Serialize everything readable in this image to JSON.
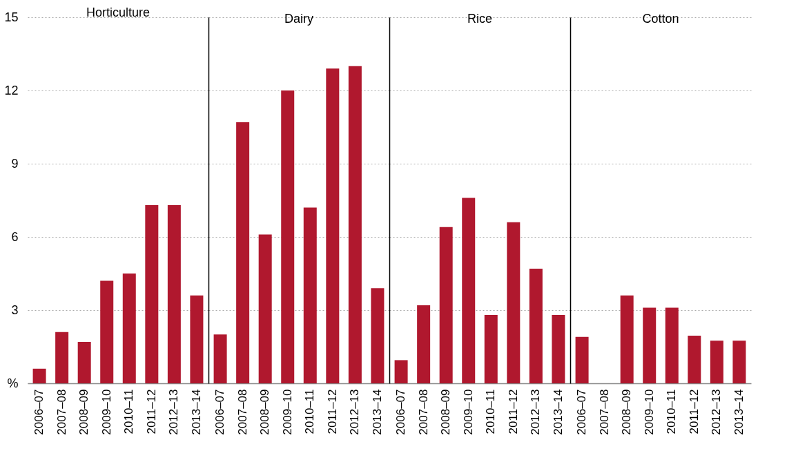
{
  "chart_data": [
    {
      "type": "bar",
      "title": "Horticulture",
      "categories": [
        "2006–07",
        "2007–08",
        "2008–09",
        "2009–10",
        "2010–11",
        "2011–12",
        "2012–13",
        "2013–14"
      ],
      "values": [
        0.6,
        2.1,
        1.7,
        4.2,
        4.5,
        7.3,
        7.3,
        3.6
      ],
      "color": "#b0182e",
      "ylim": [
        0,
        15
      ],
      "yticks": [
        {
          "value": 0,
          "label": "%"
        },
        3,
        6,
        9,
        12,
        15
      ],
      "grid": "y"
    },
    {
      "type": "bar",
      "title": "Dairy",
      "categories": [
        "2006–07",
        "2007–08",
        "2008–09",
        "2009–10",
        "2010–11",
        "2011–12",
        "2012–13",
        "2013–14"
      ],
      "values": [
        2.0,
        10.7,
        6.1,
        12.0,
        7.2,
        12.9,
        13.0,
        3.9
      ],
      "color": "#b0182e",
      "ylim": [
        0,
        15
      ],
      "yticks": [
        3,
        6,
        9,
        12,
        15
      ],
      "grid": "y",
      "tick_labels": "x"
    },
    {
      "type": "bar",
      "title": "Rice",
      "categories": [
        "2006–07",
        "2007–08",
        "2008–09",
        "2009–10",
        "2010–11",
        "2011–12",
        "2012–13",
        "2013–14"
      ],
      "values": [
        0.95,
        3.2,
        6.4,
        7.6,
        2.8,
        6.6,
        4.7,
        2.8
      ],
      "color": "#b0182e",
      "ylim": [
        0,
        15
      ],
      "yticks": [
        3,
        6,
        9,
        12,
        15
      ],
      "grid": "y",
      "tick_labels": "x"
    },
    {
      "type": "bar",
      "title": "Cotton",
      "categories": [
        "2006–07",
        "2007–08",
        "2008–09",
        "2009–10",
        "2010–11",
        "2011–12",
        "2012–13",
        "2013–14"
      ],
      "values": [
        1.9,
        null,
        3.6,
        3.1,
        3.1,
        1.95,
        1.75,
        1.75
      ],
      "color": "#b0182e",
      "ylim": [
        0,
        15
      ],
      "yticks": [
        3,
        6,
        9,
        12,
        15
      ],
      "grid": "y",
      "tick_labels": "x"
    }
  ]
}
